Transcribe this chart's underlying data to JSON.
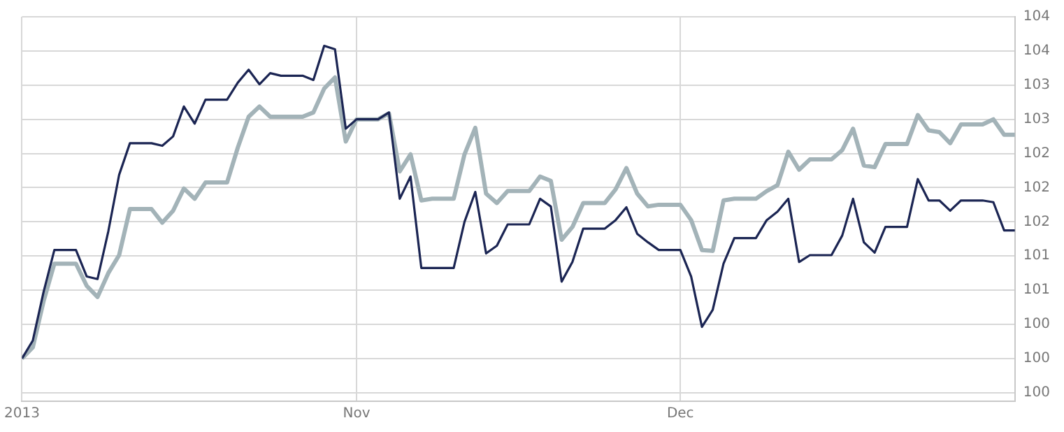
{
  "chart_data": {
    "type": "line",
    "x": [
      "2013-10-01",
      "2013-10-02",
      "2013-10-03",
      "2013-10-04",
      "2013-10-05",
      "2013-10-06",
      "2013-10-07",
      "2013-10-08",
      "2013-10-09",
      "2013-10-10",
      "2013-10-11",
      "2013-10-12",
      "2013-10-13",
      "2013-10-14",
      "2013-10-15",
      "2013-10-16",
      "2013-10-17",
      "2013-10-18",
      "2013-10-19",
      "2013-10-20",
      "2013-10-21",
      "2013-10-22",
      "2013-10-23",
      "2013-10-24",
      "2013-10-25",
      "2013-10-26",
      "2013-10-27",
      "2013-10-28",
      "2013-10-29",
      "2013-10-30",
      "2013-10-31",
      "2013-11-01",
      "2013-11-02",
      "2013-11-03",
      "2013-11-04",
      "2013-11-05",
      "2013-11-06",
      "2013-11-07",
      "2013-11-08",
      "2013-11-09",
      "2013-11-10",
      "2013-11-11",
      "2013-11-12",
      "2013-11-13",
      "2013-11-14",
      "2013-11-15",
      "2013-11-16",
      "2013-11-17",
      "2013-11-18",
      "2013-11-19",
      "2013-11-20",
      "2013-11-21",
      "2013-11-22",
      "2013-11-23",
      "2013-11-24",
      "2013-11-25",
      "2013-11-26",
      "2013-11-27",
      "2013-11-28",
      "2013-11-29",
      "2013-11-30",
      "2013-12-01",
      "2013-12-02",
      "2013-12-03",
      "2013-12-04",
      "2013-12-05",
      "2013-12-06",
      "2013-12-07",
      "2013-12-08",
      "2013-12-09",
      "2013-12-10",
      "2013-12-11",
      "2013-12-12",
      "2013-12-13",
      "2013-12-14",
      "2013-12-15",
      "2013-12-16",
      "2013-12-17",
      "2013-12-18",
      "2013-12-19",
      "2013-12-20",
      "2013-12-21",
      "2013-12-22",
      "2013-12-23",
      "2013-12-24",
      "2013-12-25",
      "2013-12-26",
      "2013-12-27",
      "2013-12-28",
      "2013-12-29",
      "2013-12-30",
      "2013-12-31",
      "2014-01-01"
    ],
    "series": [
      {
        "color": "#a3b3b8",
        "values": [
          100.0,
          100.13,
          100.67,
          101.11,
          101.11,
          101.11,
          100.85,
          100.72,
          101.0,
          101.21,
          101.75,
          101.75,
          101.75,
          101.59,
          101.73,
          101.99,
          101.87,
          102.06,
          102.06,
          102.06,
          102.47,
          102.83,
          102.95,
          102.83,
          102.83,
          102.83,
          102.83,
          102.88,
          103.16,
          103.29,
          102.54,
          102.8,
          102.8,
          102.8,
          102.87,
          102.19,
          102.39,
          101.85,
          101.87,
          101.87,
          101.87,
          102.39,
          102.7,
          101.93,
          101.82,
          101.96,
          101.96,
          101.96,
          102.13,
          102.08,
          101.39,
          101.54,
          101.82,
          101.82,
          101.82,
          101.98,
          102.23,
          101.93,
          101.78,
          101.8,
          101.8,
          101.8,
          101.62,
          101.27,
          101.26,
          101.85,
          101.87,
          101.87,
          101.87,
          101.96,
          102.03,
          102.42,
          102.21,
          102.33,
          102.33,
          102.33,
          102.44,
          102.69,
          102.26,
          102.24,
          102.51,
          102.51,
          102.51,
          102.85,
          102.67,
          102.65,
          102.52,
          102.74,
          102.74,
          102.74,
          102.8,
          102.62,
          102.62
        ]
      },
      {
        "color": "#1b2553",
        "values": [
          100.0,
          100.21,
          100.78,
          101.27,
          101.27,
          101.27,
          100.96,
          100.93,
          101.49,
          102.15,
          102.52,
          102.52,
          102.52,
          102.49,
          102.6,
          102.95,
          102.75,
          103.03,
          103.03,
          103.03,
          103.23,
          103.38,
          103.21,
          103.34,
          103.31,
          103.31,
          103.31,
          103.26,
          103.66,
          103.62,
          102.69,
          102.8,
          102.8,
          102.8,
          102.88,
          101.87,
          102.13,
          101.06,
          101.06,
          101.06,
          101.06,
          101.6,
          101.95,
          101.23,
          101.32,
          101.57,
          101.57,
          101.57,
          101.87,
          101.78,
          100.9,
          101.13,
          101.52,
          101.52,
          101.52,
          101.62,
          101.77,
          101.46,
          101.36,
          101.27,
          101.27,
          101.27,
          100.96,
          100.37,
          100.57,
          101.11,
          101.41,
          101.41,
          101.41,
          101.62,
          101.72,
          101.87,
          101.13,
          101.21,
          101.21,
          101.21,
          101.44,
          101.87,
          101.36,
          101.24,
          101.54,
          101.54,
          101.54,
          102.1,
          101.85,
          101.85,
          101.73,
          101.85,
          101.85,
          101.85,
          101.83,
          101.5,
          101.5
        ]
      }
    ],
    "xlim": [
      "2013-10-01",
      "2014-01-01"
    ],
    "xticks": [
      {
        "value": "2013-10-01",
        "label": "2013"
      },
      {
        "value": "2013-11-01",
        "label": "Nov"
      },
      {
        "value": "2013-12-01",
        "label": "Dec"
      }
    ],
    "ylim": [
      99.5,
      104.0
    ],
    "yticks": [
      {
        "value": 99.6,
        "label": "100"
      },
      {
        "value": 100.0,
        "label": "100"
      },
      {
        "value": 100.4,
        "label": "100"
      },
      {
        "value": 100.8,
        "label": "101"
      },
      {
        "value": 101.2,
        "label": "101"
      },
      {
        "value": 101.6,
        "label": "102"
      },
      {
        "value": 102.0,
        "label": "102"
      },
      {
        "value": 102.4,
        "label": "102"
      },
      {
        "value": 102.8,
        "label": "103"
      },
      {
        "value": 103.2,
        "label": "103"
      },
      {
        "value": 103.6,
        "label": "104"
      },
      {
        "value": 104.0,
        "label": "104"
      }
    ],
    "grid": true,
    "legend": false,
    "marker": "none",
    "line_style": "solid"
  }
}
